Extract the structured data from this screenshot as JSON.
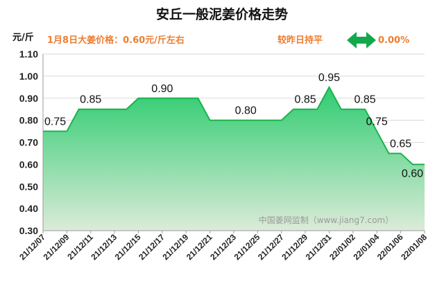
{
  "chart_data": {
    "type": "area",
    "title": "安丘一般泥姜价格走势",
    "ylabel": "元/斤",
    "price_note": "1月8日大姜价格：0.60元/斤左右",
    "change_text": "较昨日持平",
    "change_value": "0.00%",
    "watermark": "中国姜网监制（www.jiang7.com）",
    "ylim": [
      0.3,
      1.1
    ],
    "yticks": [
      "0.30",
      "0.40",
      "0.50",
      "0.60",
      "0.70",
      "0.80",
      "0.90",
      "1.00",
      "1.10"
    ],
    "xtick_labels": [
      "21/12/07",
      "21/12/09",
      "21/12/11",
      "21/12/13",
      "21/12/15",
      "21/12/17",
      "21/12/19",
      "21/12/21",
      "21/12/23",
      "21/12/25",
      "21/12/27",
      "21/12/29",
      "21/12/31",
      "22/01/02",
      "22/01/04",
      "22/01/06",
      "22/01/08"
    ],
    "x": [
      "21/12/07",
      "21/12/08",
      "21/12/09",
      "21/12/10",
      "21/12/11",
      "21/12/12",
      "21/12/13",
      "21/12/14",
      "21/12/15",
      "21/12/16",
      "21/12/17",
      "21/12/18",
      "21/12/19",
      "21/12/20",
      "21/12/21",
      "21/12/22",
      "21/12/23",
      "21/12/24",
      "21/12/25",
      "21/12/26",
      "21/12/27",
      "21/12/28",
      "21/12/29",
      "21/12/30",
      "21/12/31",
      "22/01/01",
      "22/01/02",
      "22/01/03",
      "22/01/04",
      "22/01/05",
      "22/01/06",
      "22/01/07",
      "22/01/08"
    ],
    "values": [
      0.75,
      0.75,
      0.75,
      0.85,
      0.85,
      0.85,
      0.85,
      0.85,
      0.9,
      0.9,
      0.9,
      0.9,
      0.9,
      0.9,
      0.8,
      0.8,
      0.8,
      0.8,
      0.8,
      0.8,
      0.8,
      0.85,
      0.85,
      0.85,
      0.95,
      0.85,
      0.85,
      0.85,
      0.75,
      0.65,
      0.65,
      0.6,
      0.6
    ],
    "data_labels": [
      {
        "index": 0,
        "text": "0.75"
      },
      {
        "index": 4,
        "text": "0.85"
      },
      {
        "index": 10,
        "text": "0.90"
      },
      {
        "index": 17,
        "text": "0.80"
      },
      {
        "index": 22,
        "text": "0.85"
      },
      {
        "index": 24,
        "text": "0.95"
      },
      {
        "index": 27,
        "text": "0.85"
      },
      {
        "index": 28,
        "text": "0.75"
      },
      {
        "index": 30,
        "text": "0.65"
      },
      {
        "index": 32,
        "text": "0.60"
      }
    ],
    "grid": true,
    "colors": {
      "line": "#19B34A",
      "fill_top": "#2ECC71",
      "fill_bottom": "#DCEBD8",
      "note": "#ED7D31",
      "arrow": "#14A84C"
    }
  }
}
